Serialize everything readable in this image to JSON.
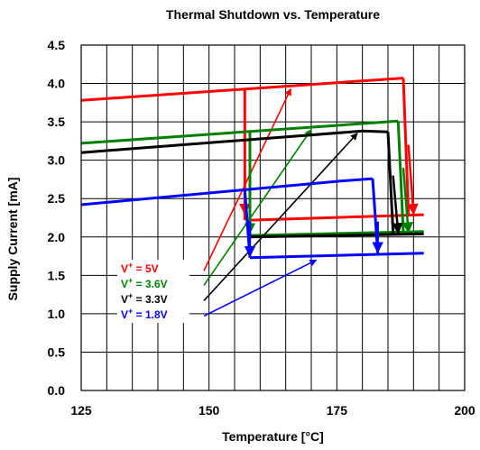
{
  "chart_data": {
    "type": "line",
    "title": "Thermal Shutdown vs. Temperature",
    "xlabel": "Temperature [°C]",
    "ylabel": "Supply Current [mA]",
    "xlim": [
      125,
      200
    ],
    "ylim": [
      0.0,
      4.5
    ],
    "x_ticks": [
      "125",
      "150",
      "175",
      "200"
    ],
    "x_tick_values": [
      125,
      150,
      175,
      200
    ],
    "y_ticks": [
      "0.0",
      "0.5",
      "1.0",
      "1.5",
      "2.0",
      "2.5",
      "3.0",
      "3.5",
      "4.0",
      "4.5"
    ],
    "y_tick_values": [
      0.0,
      0.5,
      1.0,
      1.5,
      2.0,
      2.5,
      3.0,
      3.5,
      4.0,
      4.5
    ],
    "grid": true,
    "series": [
      {
        "name": "V+ = 5V",
        "label_main": "V",
        "label_sup": "+",
        "label_rest": " = 5V",
        "color": "#ff0000",
        "heating": {
          "x": [
            125,
            188
          ],
          "y": [
            3.78,
            4.07
          ]
        },
        "shutdown_drop": {
          "x": [
            188,
            189
          ],
          "y": [
            4.07,
            2.3
          ]
        },
        "cooling": {
          "x": [
            192,
            158
          ],
          "y": [
            2.29,
            2.22
          ]
        },
        "restart_rise": {
          "x": [
            157,
            157
          ],
          "y": [
            2.22,
            3.92
          ]
        },
        "arrow_drop": {
          "x": [
            189,
            190
          ],
          "y": [
            3.2,
            2.3
          ]
        },
        "arrow_restart": {
          "x": [
            157,
            157
          ],
          "y": [
            3.5,
            2.3
          ]
        },
        "pointer": {
          "x": [
            149,
            166
          ],
          "y": [
            1.56,
            3.93
          ]
        }
      },
      {
        "name": "V+ = 3.6V",
        "label_main": "V",
        "label_sup": "+",
        "label_rest": " = 3.6V",
        "color": "#008000",
        "heating": {
          "x": [
            125,
            187
          ],
          "y": [
            3.22,
            3.51
          ]
        },
        "shutdown_drop": {
          "x": [
            187,
            188
          ],
          "y": [
            3.51,
            2.06
          ]
        },
        "cooling": {
          "x": [
            192,
            158
          ],
          "y": [
            2.07,
            2.02
          ]
        },
        "restart_rise": {
          "x": [
            158,
            158
          ],
          "y": [
            2.02,
            3.38
          ]
        },
        "arrow_drop": {
          "x": [
            188,
            189
          ],
          "y": [
            2.9,
            2.06
          ]
        },
        "arrow_restart": {
          "x": [
            158,
            158
          ],
          "y": [
            3.0,
            2.05
          ]
        },
        "pointer": {
          "x": [
            149,
            170
          ],
          "y": [
            1.37,
            3.4
          ]
        }
      },
      {
        "name": "V+ = 3.3V",
        "label_main": "V",
        "label_sup": "+",
        "label_rest": " = 3.3V",
        "color": "#000000",
        "heating": {
          "x": [
            125,
            180,
            185
          ],
          "y": [
            3.1,
            3.38,
            3.37
          ]
        },
        "shutdown_drop": {
          "x": [
            185,
            186
          ],
          "y": [
            3.37,
            2.05
          ]
        },
        "cooling": {
          "x": [
            192,
            158
          ],
          "y": [
            2.04,
            2.0
          ]
        },
        "restart_rise": null,
        "arrow_drop": {
          "x": [
            186,
            187
          ],
          "y": [
            2.8,
            2.05
          ]
        },
        "arrow_restart": null,
        "pointer": {
          "x": [
            149,
            179
          ],
          "y": [
            1.17,
            3.35
          ]
        }
      },
      {
        "name": "V+ = 1.8V",
        "label_main": "V",
        "label_sup": "+",
        "label_rest": " = 1.8V",
        "color": "#0000ff",
        "heating": {
          "x": [
            125,
            176,
            182
          ],
          "y": [
            2.42,
            2.73,
            2.76
          ]
        },
        "shutdown_drop": {
          "x": [
            182,
            183
          ],
          "y": [
            2.76,
            1.79
          ]
        },
        "cooling": {
          "x": [
            192,
            158
          ],
          "y": [
            1.79,
            1.73
          ]
        },
        "restart_rise": {
          "x": [
            158,
            157
          ],
          "y": [
            1.73,
            2.62
          ]
        },
        "arrow_drop": {
          "x": [
            183,
            183
          ],
          "y": [
            2.2,
            1.8
          ]
        },
        "arrow_restart": {
          "x": [
            158,
            158
          ],
          "y": [
            2.2,
            1.75
          ]
        },
        "pointer": {
          "x": [
            149,
            171
          ],
          "y": [
            0.97,
            1.7
          ]
        }
      }
    ]
  }
}
